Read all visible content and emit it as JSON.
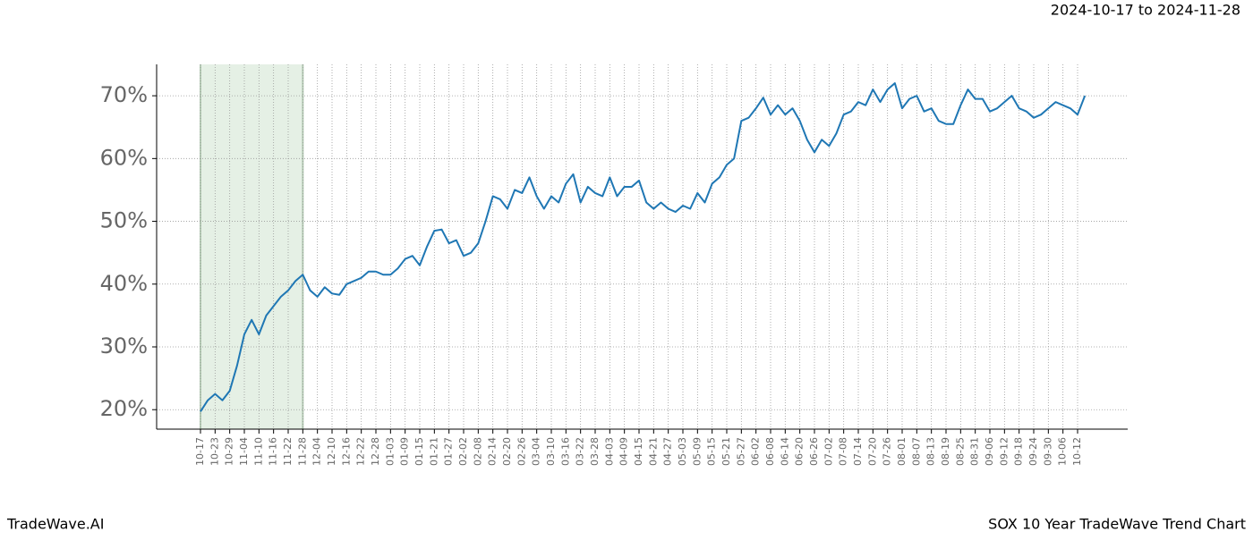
{
  "chart_data": {
    "type": "line",
    "date_range": "2024-10-17 to 2024-11-28",
    "brand": "TradeWave.AI",
    "title": "SOX 10 Year TradeWave Trend Chart",
    "categories": [
      "10-17",
      null,
      "10-23",
      null,
      "10-29",
      null,
      "11-04",
      null,
      "11-10",
      null,
      "11-16",
      null,
      "11-22",
      null,
      "11-28",
      null,
      "12-04",
      null,
      "12-10",
      null,
      "12-16",
      null,
      "12-22",
      null,
      "12-28",
      null,
      "01-03",
      null,
      "01-09",
      null,
      "01-15",
      null,
      "01-21",
      null,
      "01-27",
      null,
      "02-02",
      null,
      "02-08",
      null,
      "02-14",
      null,
      "02-20",
      null,
      "02-26",
      null,
      "03-04",
      null,
      "03-10",
      null,
      "03-16",
      null,
      "03-22",
      null,
      "03-28",
      null,
      "04-03",
      null,
      "04-09",
      null,
      "04-15",
      null,
      "04-21",
      null,
      "04-27",
      null,
      "05-03",
      null,
      "05-09",
      null,
      "05-15",
      null,
      "05-21",
      null,
      "05-27",
      null,
      "06-02",
      null,
      "06-08",
      null,
      "06-14",
      null,
      "06-20",
      null,
      "06-26",
      null,
      "07-02",
      null,
      "07-08",
      null,
      "07-14",
      null,
      "07-20",
      null,
      "07-26",
      null,
      "08-01",
      null,
      "08-07",
      null,
      "08-13",
      null,
      "08-19",
      null,
      "08-25",
      null,
      "08-31",
      null,
      "09-06",
      null,
      "09-12",
      null,
      "09-18",
      null,
      "09-24",
      null,
      "09-30",
      null,
      "10-06",
      null,
      "10-12",
      null
    ],
    "values": [
      19.7,
      21.5,
      22.5,
      21.5,
      23,
      27,
      32,
      34.3,
      32,
      35,
      36.5,
      38,
      39,
      40.5,
      41.5,
      39,
      38,
      39.5,
      38.5,
      38.3,
      40,
      40.5,
      41,
      42,
      42,
      41.5,
      41.5,
      42.5,
      44,
      44.5,
      43,
      46,
      48.5,
      48.7,
      46.5,
      47,
      44.5,
      45,
      46.5,
      50,
      54,
      53.5,
      52,
      55,
      54.5,
      57,
      54,
      52,
      54,
      53,
      56,
      57.5,
      53,
      55.5,
      54.5,
      54,
      57,
      54,
      55.5,
      55.5,
      56.5,
      53,
      52,
      53,
      52,
      51.5,
      52.5,
      52,
      54.5,
      53,
      56,
      57,
      59,
      60,
      66,
      66.5,
      68,
      69.7,
      67,
      68.5,
      67,
      68,
      66,
      63,
      61,
      63,
      62,
      64,
      67,
      67.5,
      69,
      68.5,
      71,
      69,
      71,
      72,
      68,
      69.5,
      70,
      67.5,
      68,
      66,
      65.5,
      65.5,
      68.5,
      71,
      69.5,
      69.5,
      67.5,
      68,
      69,
      70,
      68,
      67.5,
      66.5,
      67,
      68,
      69,
      68.5,
      68,
      67,
      70
    ],
    "color": "#1f77b4",
    "shade": {
      "from": "10-17",
      "to": "11-28",
      "color": "#dcebdc"
    },
    "ylim": [
      16.9,
      75
    ],
    "yticks": [
      {
        "value": 20,
        "label": "20%"
      },
      {
        "value": 30,
        "label": "30%"
      },
      {
        "value": 40,
        "label": "40%"
      },
      {
        "value": 50,
        "label": "50%"
      },
      {
        "value": 60,
        "label": "60%"
      },
      {
        "value": 70,
        "label": "70%"
      }
    ],
    "grid": true
  }
}
